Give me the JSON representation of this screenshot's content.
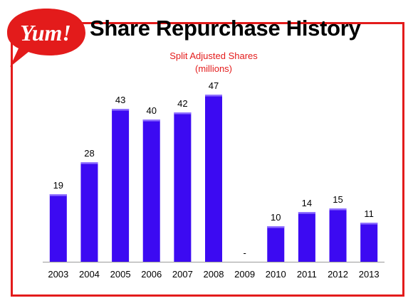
{
  "logo": {
    "text": "Yum!",
    "color": "#e31b1b",
    "icon": "speech-bubble-logo"
  },
  "slide": {
    "title": "Share Repurchase History",
    "accent_color": "#e31b1b"
  },
  "chart_data": {
    "type": "bar",
    "title": "Share Repurchase History",
    "subtitle_line1": "Split Adjusted Shares",
    "subtitle_line2": "(millions)",
    "categories": [
      "2003",
      "2004",
      "2005",
      "2006",
      "2007",
      "2008",
      "2009",
      "2010",
      "2011",
      "2012",
      "2013"
    ],
    "values": [
      19,
      28,
      43,
      40,
      42,
      47,
      0,
      10,
      14,
      15,
      11
    ],
    "data_labels": [
      "19",
      "28",
      "43",
      "40",
      "42",
      "47",
      "-",
      "10",
      "14",
      "15",
      "11"
    ],
    "ylim": [
      0,
      50
    ],
    "bar_color": "#3c0af2",
    "bar_highlight": "#8f70ff",
    "grid": false,
    "legend": "none"
  }
}
